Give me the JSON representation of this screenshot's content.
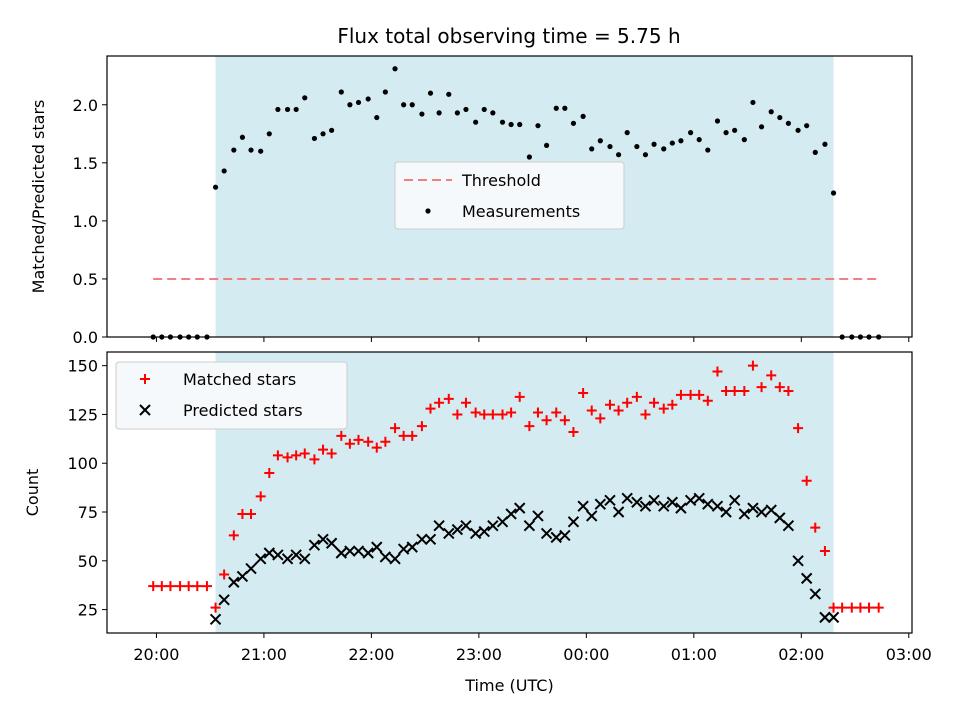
{
  "chart_data": [
    {
      "type": "scatter",
      "panel": "top",
      "title": "Flux total observing time = 5.75 h",
      "ylabel": "Matched/Predicted stars",
      "ylim": [
        0,
        2.42
      ],
      "yticks": [
        0.0,
        0.5,
        1.0,
        1.5,
        2.0
      ],
      "ytick_labels": [
        "0.0",
        "0.5",
        "1.0",
        "1.5",
        "2.0"
      ],
      "xlim_hours": [
        19.54,
        27.03
      ],
      "observing_window_hours": [
        20.55,
        26.3
      ],
      "window_color": "#d4ebf1",
      "legend": {
        "placement": "center",
        "entries": [
          "Threshold",
          "Measurements"
        ]
      },
      "series": [
        {
          "name": "Threshold",
          "style": "dashed-line",
          "color": "#f08080",
          "x": [
            19.97,
            26.7
          ],
          "values": [
            0.5,
            0.5
          ]
        },
        {
          "name": "Measurements",
          "style": "dot",
          "color": "#000000",
          "x": [
            19.97,
            20.05,
            20.13,
            20.22,
            20.3,
            20.38,
            20.47,
            20.55,
            20.63,
            20.72,
            20.8,
            20.88,
            20.97,
            21.05,
            21.13,
            21.22,
            21.3,
            21.38,
            21.47,
            21.55,
            21.63,
            21.72,
            21.8,
            21.88,
            21.97,
            22.05,
            22.13,
            22.22,
            22.3,
            22.38,
            22.47,
            22.55,
            22.63,
            22.72,
            22.8,
            22.88,
            22.97,
            23.05,
            23.13,
            23.22,
            23.3,
            23.38,
            23.47,
            23.55,
            23.63,
            23.72,
            23.8,
            23.88,
            23.97,
            24.05,
            24.13,
            24.22,
            24.3,
            24.38,
            24.47,
            24.55,
            24.63,
            24.72,
            24.8,
            24.88,
            24.97,
            25.05,
            25.13,
            25.22,
            25.3,
            25.38,
            25.47,
            25.55,
            25.63,
            25.72,
            25.8,
            25.88,
            25.97,
            26.05,
            26.13,
            26.22,
            26.3,
            26.38,
            26.47,
            26.55,
            26.63,
            26.72
          ],
          "values": [
            0,
            0,
            0,
            0,
            0,
            0,
            0,
            1.29,
            1.43,
            1.61,
            1.72,
            1.61,
            1.6,
            1.75,
            1.96,
            1.96,
            1.96,
            2.06,
            1.71,
            1.75,
            1.78,
            2.11,
            2.0,
            2.02,
            2.05,
            1.89,
            2.11,
            2.31,
            2.0,
            2.0,
            1.92,
            2.1,
            1.93,
            2.09,
            1.93,
            1.96,
            1.85,
            1.96,
            1.93,
            1.85,
            1.83,
            1.83,
            1.55,
            1.82,
            1.65,
            1.97,
            1.97,
            1.84,
            1.9,
            1.62,
            1.69,
            1.64,
            1.57,
            1.76,
            1.64,
            1.57,
            1.66,
            1.62,
            1.67,
            1.69,
            1.76,
            1.7,
            1.61,
            1.86,
            1.76,
            1.78,
            1.7,
            2.02,
            1.81,
            1.94,
            1.89,
            1.84,
            1.78,
            1.82,
            1.59,
            1.66,
            1.24,
            0,
            0,
            0,
            0,
            0
          ]
        }
      ]
    },
    {
      "type": "scatter",
      "panel": "bottom",
      "xlabel": "Time (UTC)",
      "ylabel": "Count",
      "ylim": [
        13,
        157
      ],
      "yticks": [
        25,
        50,
        75,
        100,
        125,
        150
      ],
      "ytick_labels": [
        "25",
        "50",
        "75",
        "100",
        "125",
        "150"
      ],
      "xlim_hours": [
        19.54,
        27.03
      ],
      "xticks_hours": [
        20,
        21,
        22,
        23,
        24,
        25,
        26,
        27
      ],
      "xtick_labels": [
        "20:00",
        "21:00",
        "22:00",
        "23:00",
        "00:00",
        "01:00",
        "02:00",
        "03:00"
      ],
      "observing_window_hours": [
        20.55,
        26.3
      ],
      "window_color": "#d4ebf1",
      "legend": {
        "placement": "upper-left",
        "entries": [
          "Matched stars",
          "Predicted stars"
        ]
      },
      "series": [
        {
          "name": "Matched stars",
          "style": "plus",
          "color": "#ff0000",
          "x": [
            19.97,
            20.05,
            20.13,
            20.22,
            20.3,
            20.38,
            20.47,
            20.55,
            20.63,
            20.72,
            20.8,
            20.88,
            20.97,
            21.05,
            21.13,
            21.22,
            21.3,
            21.38,
            21.47,
            21.55,
            21.63,
            21.72,
            21.8,
            21.88,
            21.97,
            22.05,
            22.13,
            22.22,
            22.3,
            22.38,
            22.47,
            22.55,
            22.63,
            22.72,
            22.8,
            22.88,
            22.97,
            23.05,
            23.13,
            23.22,
            23.3,
            23.38,
            23.47,
            23.55,
            23.63,
            23.72,
            23.8,
            23.88,
            23.97,
            24.05,
            24.13,
            24.22,
            24.3,
            24.38,
            24.47,
            24.55,
            24.63,
            24.72,
            24.8,
            24.88,
            24.97,
            25.05,
            25.13,
            25.22,
            25.3,
            25.38,
            25.47,
            25.55,
            25.63,
            25.72,
            25.8,
            25.88,
            25.97,
            26.05,
            26.13,
            26.22,
            26.3,
            26.38,
            26.47,
            26.55,
            26.63,
            26.72
          ],
          "values": [
            37,
            37,
            37,
            37,
            37,
            37,
            37,
            26,
            43,
            63,
            74,
            74,
            83,
            95,
            104,
            103,
            104,
            105,
            102,
            107,
            105,
            114,
            110,
            112,
            111,
            108,
            111,
            118,
            114,
            114,
            119,
            128,
            131,
            133,
            125,
            131,
            126,
            125,
            125,
            125,
            126,
            134,
            119,
            126,
            122,
            126,
            122,
            116,
            136,
            127,
            123,
            130,
            127,
            131,
            134,
            125,
            131,
            128,
            130,
            135,
            135,
            135,
            132,
            147,
            137,
            137,
            137,
            150,
            139,
            145,
            139,
            137,
            118,
            91,
            67,
            55,
            26,
            26,
            26,
            26,
            26,
            26
          ]
        },
        {
          "name": "Predicted stars",
          "style": "x",
          "color": "#000000",
          "x": [
            20.55,
            20.63,
            20.72,
            20.8,
            20.88,
            20.97,
            21.05,
            21.13,
            21.22,
            21.3,
            21.38,
            21.47,
            21.55,
            21.63,
            21.72,
            21.8,
            21.88,
            21.97,
            22.05,
            22.13,
            22.22,
            22.3,
            22.38,
            22.47,
            22.55,
            22.63,
            22.72,
            22.8,
            22.88,
            22.97,
            23.05,
            23.13,
            23.22,
            23.3,
            23.38,
            23.47,
            23.55,
            23.63,
            23.72,
            23.8,
            23.88,
            23.97,
            24.05,
            24.13,
            24.22,
            24.3,
            24.38,
            24.47,
            24.55,
            24.63,
            24.72,
            24.8,
            24.88,
            24.97,
            25.05,
            25.13,
            25.22,
            25.3,
            25.38,
            25.47,
            25.55,
            25.63,
            25.72,
            25.8,
            25.88,
            25.97,
            26.05,
            26.13,
            26.22,
            26.3
          ],
          "values": [
            20,
            30,
            39,
            42,
            46,
            51,
            54,
            53,
            51,
            53,
            51,
            58,
            61,
            59,
            54,
            55,
            55,
            54,
            57,
            52,
            51,
            56,
            57,
            61,
            61,
            68,
            64,
            66,
            68,
            64,
            65,
            68,
            70,
            74,
            77,
            68,
            73,
            64,
            62,
            63,
            70,
            78,
            73,
            79,
            81,
            75,
            82,
            80,
            78,
            81,
            78,
            80,
            77,
            81,
            82,
            79,
            78,
            75,
            81,
            74,
            77,
            75,
            76,
            72,
            68,
            50,
            41,
            33,
            21,
            21
          ]
        }
      ]
    }
  ]
}
